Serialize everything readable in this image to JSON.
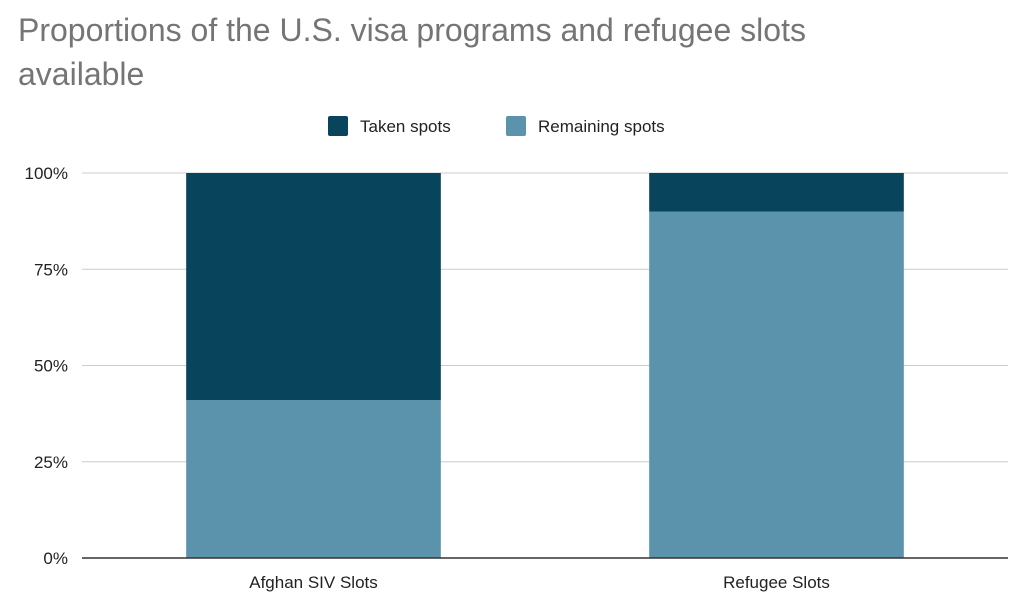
{
  "chart_data": {
    "type": "bar",
    "stacked": true,
    "title": "Proportions of the U.S. visa programs and refugee slots available",
    "categories": [
      "Afghan SIV Slots",
      "Refugee Slots"
    ],
    "series": [
      {
        "name": "Taken spots",
        "values": [
          59,
          10
        ],
        "color": "#08445c"
      },
      {
        "name": "Remaining spots",
        "values": [
          41,
          90
        ],
        "color": "#5b93ad"
      }
    ],
    "ylim": [
      0,
      100
    ],
    "yticks": [
      "0%",
      "25%",
      "50%",
      "75%",
      "100%"
    ],
    "ytick_values": [
      0,
      25,
      50,
      75,
      100
    ],
    "grid": true,
    "legend_position": "top-center",
    "xlabel": "",
    "ylabel": ""
  }
}
